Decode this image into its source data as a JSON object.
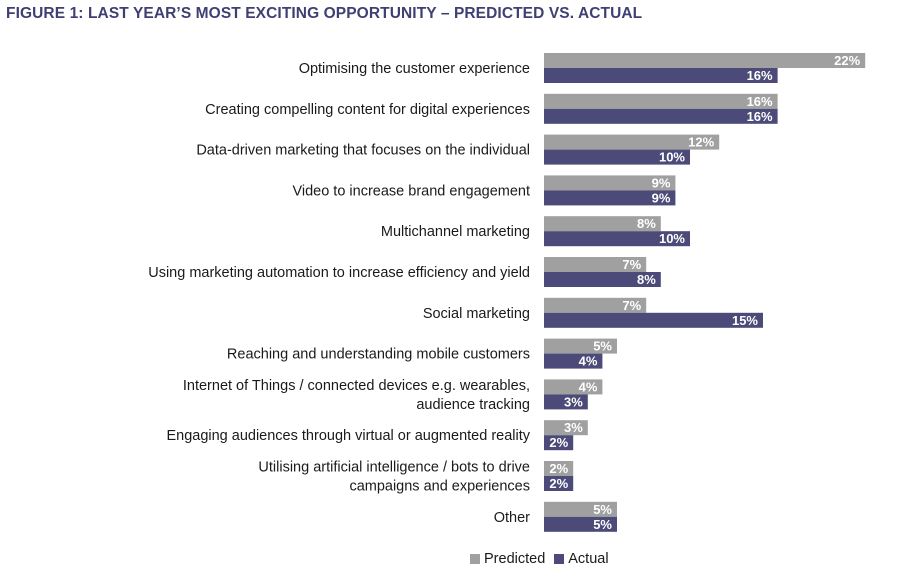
{
  "title": "FIGURE 1: LAST YEAR’S MOST EXCITING OPPORTUNITY – PREDICTED VS. ACTUAL",
  "colors": {
    "title": "#3e3f72",
    "predicted": "#a0a0a0",
    "actual": "#4b4a78"
  },
  "chart_data": {
    "type": "bar",
    "orientation": "horizontal",
    "title": "FIGURE 1: LAST YEAR’S MOST EXCITING OPPORTUNITY – PREDICTED VS. ACTUAL",
    "categories": [
      [
        "Optimising the customer experience"
      ],
      [
        "Creating compelling content for digital experiences"
      ],
      [
        "Data-driven marketing that focuses on the individual"
      ],
      [
        "Video to increase brand engagement"
      ],
      [
        "Multichannel marketing"
      ],
      [
        "Using marketing automation to increase efficiency and yield"
      ],
      [
        "Social marketing"
      ],
      [
        "Reaching and understanding mobile customers"
      ],
      [
        "Internet of Things / connected devices e.g. wearables,",
        "audience tracking"
      ],
      [
        "Engaging audiences through virtual or augmented reality"
      ],
      [
        "Utilising artificial intelligence / bots to drive",
        "campaigns and experiences"
      ],
      [
        "Other"
      ]
    ],
    "series": [
      {
        "name": "Predicted",
        "values": [
          22,
          16,
          12,
          9,
          8,
          7,
          7,
          5,
          4,
          3,
          2,
          5
        ]
      },
      {
        "name": "Actual",
        "values": [
          16,
          16,
          10,
          9,
          10,
          8,
          15,
          4,
          3,
          2,
          2,
          5
        ]
      }
    ],
    "value_suffix": "%",
    "xlim": [
      0,
      22
    ],
    "grid": false,
    "legend_position": "bottom-center"
  },
  "legend": {
    "predicted": "Predicted",
    "actual": "Actual"
  }
}
